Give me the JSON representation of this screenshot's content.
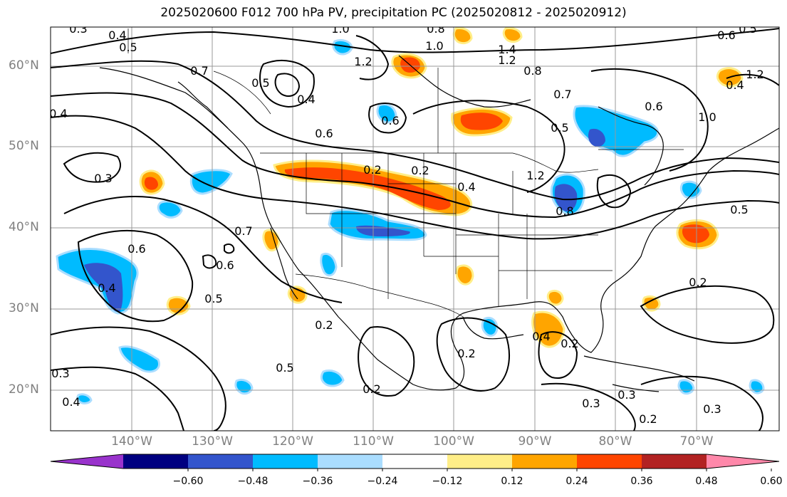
{
  "title": "2025020600 F012 700 hPa PV, precipitation PC (2025020812 - 2025020912)",
  "latitude_labels": [
    "60°N",
    "50°N",
    "40°N",
    "30°N",
    "20°N"
  ],
  "longitude_labels": [
    "140°W",
    "130°W",
    "120°W",
    "110°W",
    "100°W",
    "90°W",
    "80°W",
    "70°W"
  ],
  "colorbar": {
    "tick_labels": [
      "−0.60",
      "−0.48",
      "−0.36",
      "−0.24",
      "−0.12",
      "0.12",
      "0.24",
      "0.36",
      "0.48",
      "0.60"
    ],
    "colors": [
      "#9933cc",
      "#000080",
      "#3355cc",
      "#00bbff",
      "#aaddff",
      "#ffffff",
      "#ffee88",
      "#ffa500",
      "#ff4500",
      "#b22222",
      "#ff88aa"
    ]
  },
  "contour_labels": [
    "0.3",
    "0.4",
    "0.5",
    "1.0",
    "0.8",
    "1.0",
    "0.6",
    "0.5",
    "0.7",
    "1.2",
    "1.4",
    "1.2",
    "0.8",
    "0.5",
    "0.4",
    "0.4",
    "0.6",
    "0.7",
    "0.6",
    "0.5",
    "1.0",
    "0.4",
    "0.6",
    "1.2",
    "0.3",
    "0.2",
    "0.4",
    "0.2",
    "1.2",
    "0.8",
    "0.7",
    "0.6",
    "0.5",
    "0.6",
    "0.4",
    "0.5",
    "0.2",
    "0.5",
    "0.2",
    "0.2",
    "0.4",
    "0.2",
    "0.3",
    "0.4",
    "0.2",
    "0.3",
    "0.3",
    "0.2",
    "0.3"
  ]
}
